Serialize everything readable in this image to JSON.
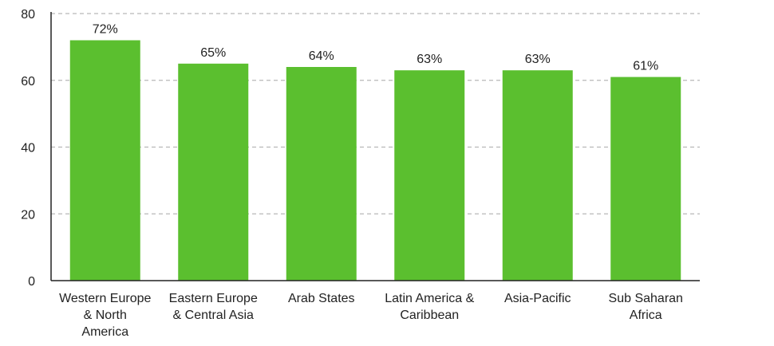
{
  "chart_data": {
    "type": "bar",
    "categories": [
      [
        "Western Europe",
        "& North",
        "America"
      ],
      [
        "Eastern Europe",
        "& Central Asia"
      ],
      [
        "Arab States"
      ],
      [
        "Latin America &",
        "Caribbean"
      ],
      [
        "Asia-Pacific"
      ],
      [
        "Sub Saharan",
        "Africa"
      ]
    ],
    "values": [
      72,
      65,
      64,
      63,
      63,
      61
    ],
    "data_labels": [
      "72%",
      "65%",
      "64%",
      "63%",
      "63%",
      "61%"
    ],
    "yticks": [
      0,
      20,
      40,
      60,
      80
    ],
    "ylim": [
      0,
      80
    ],
    "title": "",
    "xlabel": "",
    "ylabel": "",
    "grid": "horizontal dashed",
    "bar_color": "#5bbf2f",
    "grid_color": "#b8b8b8",
    "axis_color": "#222222"
  }
}
